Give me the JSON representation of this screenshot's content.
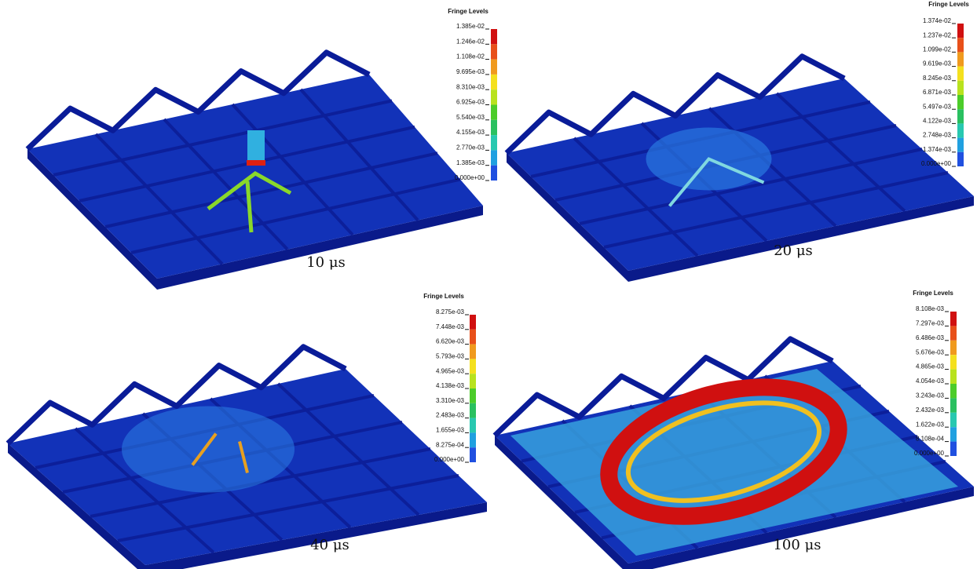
{
  "panels": [
    {
      "caption": "10 μs",
      "legend": {
        "title": "Fringe Levels",
        "labels": [
          "1.385e-02",
          "1.246e-02",
          "1.108e-02",
          "9.695e-03",
          "8.310e-03",
          "6.925e-03",
          "5.540e-03",
          "4.155e-03",
          "2.770e-03",
          "1.385e-03",
          "0.000e+00"
        ]
      }
    },
    {
      "caption": "20 μs",
      "legend": {
        "title": "Fringe Levels",
        "labels": [
          "1.374e-02",
          "1.237e-02",
          "1.099e-02",
          "9.619e-03",
          "8.245e-03",
          "6.871e-03",
          "5.497e-03",
          "4.122e-03",
          "2.748e-03",
          "1.374e-03",
          "0.000e+00"
        ]
      }
    },
    {
      "caption": "40 μs",
      "legend": {
        "title": "Fringe Levels",
        "labels": [
          "8.275e-03",
          "7.448e-03",
          "6.620e-03",
          "5.793e-03",
          "4.965e-03",
          "4.138e-03",
          "3.310e-03",
          "2.483e-03",
          "1.655e-03",
          "8.275e-04",
          "0.000e+00"
        ]
      }
    },
    {
      "caption": "100 μs",
      "legend": {
        "title": "Fringe Levels",
        "labels": [
          "8.108e-03",
          "7.297e-03",
          "6.486e-03",
          "5.676e-03",
          "4.865e-03",
          "4.054e-03",
          "3.243e-03",
          "2.432e-03",
          "1.622e-03",
          "8.108e-04",
          "0.000e+00"
        ]
      }
    }
  ]
}
